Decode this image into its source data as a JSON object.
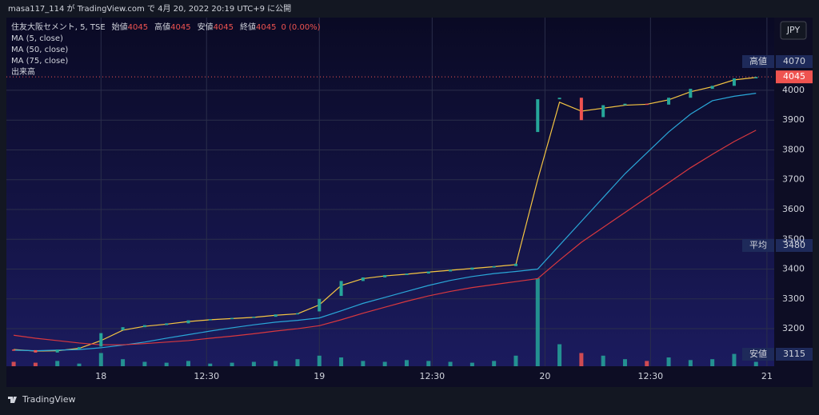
{
  "header": {
    "text": "masa117_114 が TradingView.com で 4月 20, 2022 20:19 UTC+9 に公開"
  },
  "currency": "JPY",
  "footer": {
    "brand": "TradingView"
  },
  "side_labels": [
    {
      "name": "高値",
      "value": 4070
    },
    {
      "name": "平均",
      "value": 3480
    },
    {
      "name": "安値",
      "value": 3115
    }
  ],
  "last_price": 4045,
  "chart_data": {
    "type": "candlestick",
    "symbol": "住友大阪セメント, 5, TSE",
    "ohlc": [
      {
        "name": "始値",
        "value": 4045
      },
      {
        "name": "高値",
        "value": 4045
      },
      {
        "name": "安値",
        "value": 4045
      },
      {
        "name": "終値",
        "value": 4045
      }
    ],
    "change": "0 (0.00%)",
    "volume_name": "出来高",
    "x": [
      -24,
      -18,
      -12,
      -6,
      0,
      6,
      12,
      18,
      24,
      30,
      36,
      42,
      48,
      54,
      60,
      66,
      72,
      78,
      84,
      90,
      96,
      102,
      108,
      114,
      120,
      126,
      132,
      138,
      144,
      150,
      156,
      162,
      168,
      174,
      180
    ],
    "open": [
      3130,
      3128,
      3120,
      3130,
      3140,
      3195,
      3205,
      3212,
      3218,
      3228,
      3232,
      3236,
      3240,
      3248,
      3258,
      3310,
      3360,
      3372,
      3380,
      3385,
      3392,
      3398,
      3405,
      3410,
      3860,
      3970,
      3975,
      3910,
      3950,
      3955,
      3952,
      3975,
      4005,
      4015,
      4040
    ],
    "close": [
      3128,
      3120,
      3130,
      3138,
      3185,
      3205,
      3212,
      3218,
      3228,
      3232,
      3236,
      3240,
      3248,
      3252,
      3300,
      3360,
      3372,
      3380,
      3385,
      3392,
      3398,
      3405,
      3410,
      3418,
      3970,
      3975,
      3900,
      3950,
      3955,
      3952,
      3975,
      4005,
      4015,
      4040,
      4045
    ],
    "volume": [
      5,
      4,
      6,
      3,
      15,
      8,
      5,
      4,
      6,
      3,
      4,
      5,
      6,
      8,
      12,
      10,
      6,
      5,
      7,
      6,
      5,
      4,
      6,
      12,
      100,
      25,
      15,
      12,
      8,
      6,
      10,
      7,
      8,
      14,
      5
    ],
    "up_color": "#26a69a",
    "down_color": "#ef5350",
    "series": [
      {
        "name": "MA (5, close)",
        "color": "#f5c542",
        "values": [
          3130,
          3125,
          3126,
          3134,
          3160,
          3195,
          3208,
          3215,
          3224,
          3230,
          3234,
          3238,
          3245,
          3250,
          3280,
          3345,
          3368,
          3377,
          3383,
          3390,
          3396,
          3402,
          3408,
          3415,
          3700,
          3960,
          3930,
          3940,
          3950,
          3953,
          3968,
          3995,
          4012,
          4035,
          4043
        ]
      },
      {
        "name": "MA (50, close)",
        "color": "#2aa7d8",
        "values": [
          3128,
          3126,
          3128,
          3130,
          3136,
          3145,
          3155,
          3168,
          3180,
          3192,
          3203,
          3213,
          3222,
          3228,
          3236,
          3260,
          3285,
          3305,
          3325,
          3345,
          3362,
          3375,
          3385,
          3392,
          3400,
          3480,
          3560,
          3640,
          3720,
          3790,
          3860,
          3920,
          3965,
          3980,
          3990
        ]
      },
      {
        "name": "MA (75, close)",
        "color": "#d9383e",
        "values": [
          3178,
          3168,
          3160,
          3152,
          3146,
          3146,
          3150,
          3155,
          3160,
          3168,
          3175,
          3183,
          3192,
          3200,
          3210,
          3230,
          3252,
          3272,
          3292,
          3310,
          3325,
          3338,
          3348,
          3358,
          3368,
          3430,
          3490,
          3540,
          3590,
          3640,
          3690,
          3740,
          3785,
          3828,
          3866
        ]
      }
    ],
    "xlim": [
      -26,
      185
    ],
    "xticks": [
      {
        "value": 0,
        "label": "18"
      },
      {
        "value": 29,
        "label": "12:30"
      },
      {
        "value": 60,
        "label": "19"
      },
      {
        "value": 91,
        "label": "12:30"
      },
      {
        "value": 122,
        "label": "20"
      },
      {
        "value": 151,
        "label": "12:30"
      },
      {
        "value": 183,
        "label": "21"
      }
    ],
    "ylim": [
      3074,
      4244
    ],
    "yticks": [
      3200,
      3300,
      3400,
      3500,
      3600,
      3700,
      3800,
      3900,
      4000
    ],
    "grid": true
  }
}
